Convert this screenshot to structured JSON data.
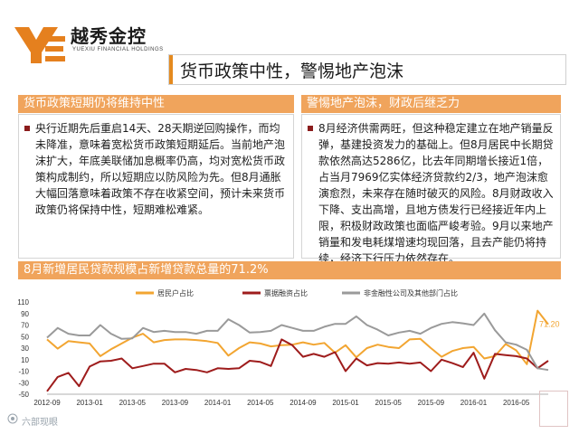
{
  "header": {
    "company_name": "越秀金控",
    "company_sub": "YUEXIU FINANCIAL HOLDINGS",
    "page_title": "货币政策中性，警惕地产泡沫"
  },
  "section1": {
    "heading": "货币政策短期仍将维持中性",
    "paragraph": "央行近期先后重启14天、28天期逆回购操作，而均未降准，意味着宽松货币政策短期延后。当前地产泡沫扩大，年底美联储加息概率仍高，均对宽松货币政策构成制约，所以短期应以防风险为先。但8月通胀大幅回落意味着政策不存在收紧空间，预计未来货币政策仍将保持中性，短期难松难紧。"
  },
  "section2": {
    "heading": "警惕地产泡沫，财政后继乏力",
    "paragraph": "8月经济供需两旺，但这种稳定建立在地产销量反弹，基建投资发力的基础上。但8月居民中长期贷款依然高达5286亿，比去年同期增长接近1倍，占当月7969亿实体经济贷款约2/3，地产泡沫愈演愈烈，未来存在随时破灭的风险。8月财政收入下降、支出高增，且地方债发行已经接近年内上限，积极财政政策也面临严峻考验。9月以来地产销量和发电耗煤增速均现回落，且去产能仍将持续，经济下行压力依然存在。"
  },
  "section3": {
    "heading": "8月新增居民贷款规模占新增贷款总量的71.2%"
  },
  "watermark": {
    "text": "六部现眼"
  },
  "chart_data": {
    "type": "line",
    "title": "",
    "xlabel": "",
    "ylabel": "",
    "ylim": [
      -50,
      110
    ],
    "yticks": [
      -50,
      -30,
      -10,
      10,
      30,
      50,
      70,
      90,
      110
    ],
    "x_tick_labels": [
      "2012-09",
      "2013-01",
      "2013-05",
      "2013-09",
      "2014-01",
      "2014-05",
      "2014-09",
      "2015-01",
      "2015-05",
      "2015-09",
      "2016-01",
      "2016-05"
    ],
    "grid": false,
    "legend_position": "top",
    "end_label": "71.20",
    "months": [
      "2012-09",
      "2012-10",
      "2012-11",
      "2012-12",
      "2013-01",
      "2013-02",
      "2013-03",
      "2013-04",
      "2013-05",
      "2013-06",
      "2013-07",
      "2013-08",
      "2013-09",
      "2013-10",
      "2013-11",
      "2013-12",
      "2014-01",
      "2014-02",
      "2014-03",
      "2014-04",
      "2014-05",
      "2014-06",
      "2014-07",
      "2014-08",
      "2014-09",
      "2014-10",
      "2014-11",
      "2014-12",
      "2015-01",
      "2015-02",
      "2015-03",
      "2015-04",
      "2015-05",
      "2015-06",
      "2015-07",
      "2015-08",
      "2015-09",
      "2015-10",
      "2015-11",
      "2015-12",
      "2016-01",
      "2016-02",
      "2016-03",
      "2016-04",
      "2016-05",
      "2016-06",
      "2016-07",
      "2016-08"
    ],
    "series": [
      {
        "name": "居民户占比",
        "color": "#f2a531",
        "values": [
          45,
          29,
          42,
          40,
          38,
          16,
          28,
          38,
          48,
          55,
          40,
          44,
          45,
          45,
          44,
          42,
          39,
          17,
          30,
          40,
          38,
          33,
          35,
          36,
          40,
          36,
          39,
          22,
          35,
          14,
          30,
          36,
          32,
          30,
          45,
          46,
          30,
          15,
          25,
          30,
          32,
          12,
          16,
          37,
          26,
          2,
          95,
          71.2
        ]
      },
      {
        "name": "票据融资占比",
        "color": "#9e1c1c",
        "values": [
          -45,
          -20,
          -13,
          -36,
          -2,
          7,
          8,
          12,
          -5,
          -1,
          3,
          3,
          -12,
          -6,
          -8,
          -12,
          -5,
          -6,
          -5,
          8,
          6,
          -1,
          45,
          35,
          15,
          20,
          15,
          23,
          -10,
          12,
          0,
          4,
          3,
          5,
          3,
          5,
          -10,
          10,
          4,
          -3,
          22,
          -23,
          20,
          18,
          16,
          12,
          -5,
          8
        ]
      },
      {
        "name": "非金融性公司及其他部门占比",
        "color": "#9a9a9a",
        "values": [
          48,
          65,
          55,
          52,
          52,
          70,
          55,
          46,
          47,
          65,
          58,
          60,
          58,
          58,
          55,
          60,
          60,
          80,
          70,
          57,
          58,
          60,
          70,
          65,
          60,
          60,
          67,
          72,
          72,
          85,
          70,
          62,
          52,
          57,
          60,
          55,
          65,
          72,
          75,
          73,
          70,
          90,
          61,
          40,
          36,
          27,
          -5,
          -8
        ]
      }
    ]
  }
}
